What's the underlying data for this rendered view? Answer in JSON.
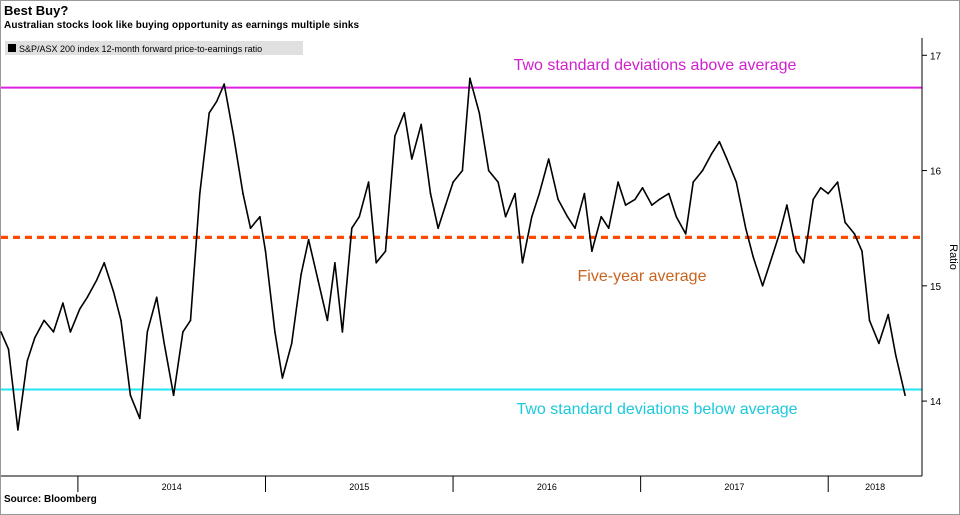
{
  "header": {
    "title": "Best Buy?",
    "subtitle": "Australian stocks look like buying opportunity as earnings multiple sinks"
  },
  "footer": {
    "source": "Source: Bloomberg"
  },
  "colors": {
    "series": "#000000",
    "upper_band": "#e020e0",
    "average": "#ff4a00",
    "average_label": "#c8641e",
    "lower_band": "#22e5f0",
    "upper_label": "#d020d0",
    "lower_label": "#1cc8dc"
  },
  "chart_data": {
    "type": "line",
    "series": [
      {
        "name": "S&P/ASX 200 index 12-month forward price-to-earnings ratio",
        "x": [
          2013.59,
          2013.63,
          2013.68,
          2013.73,
          2013.77,
          2013.82,
          2013.87,
          2013.92,
          2013.96,
          2014.01,
          2014.05,
          2014.1,
          2014.14,
          2014.19,
          2014.23,
          2014.28,
          2014.33,
          2014.37,
          2014.42,
          2014.46,
          2014.51,
          2014.56,
          2014.6,
          2014.65,
          2014.7,
          2014.74,
          2014.78,
          2014.83,
          2014.88,
          2014.92,
          2014.97,
          2015.0,
          2015.05,
          2015.09,
          2015.14,
          2015.19,
          2015.23,
          2015.28,
          2015.33,
          2015.37,
          2015.41,
          2015.46,
          2015.5,
          2015.55,
          2015.59,
          2015.64,
          2015.69,
          2015.74,
          2015.78,
          2015.83,
          2015.88,
          2015.92,
          2015.96,
          2016.0,
          2016.05,
          2016.09,
          2016.14,
          2016.19,
          2016.24,
          2016.28,
          2016.33,
          2016.37,
          2016.42,
          2016.46,
          2016.51,
          2016.56,
          2016.61,
          2016.65,
          2016.7,
          2016.74,
          2016.79,
          2016.83,
          2016.88,
          2016.92,
          2016.97,
          2017.01,
          2017.06,
          2017.1,
          2017.15,
          2017.19,
          2017.24,
          2017.28,
          2017.33,
          2017.38,
          2017.42,
          2017.46,
          2017.51,
          2017.56,
          2017.6,
          2017.65,
          2017.69,
          2017.74,
          2017.78,
          2017.83,
          2017.87,
          2017.92,
          2017.96,
          2018.0,
          2018.05,
          2018.09,
          2018.14,
          2018.18,
          2018.22,
          2018.27,
          2018.32,
          2018.36,
          2018.41
        ],
        "values": [
          14.6,
          14.45,
          13.75,
          14.35,
          14.55,
          14.7,
          14.6,
          14.85,
          14.6,
          14.8,
          14.9,
          15.05,
          15.2,
          14.95,
          14.7,
          14.05,
          13.85,
          14.6,
          14.9,
          14.5,
          14.05,
          14.6,
          14.7,
          15.8,
          16.5,
          16.6,
          16.75,
          16.3,
          15.8,
          15.5,
          15.6,
          15.3,
          14.6,
          14.2,
          14.5,
          15.1,
          15.4,
          15.05,
          14.7,
          15.2,
          14.6,
          15.5,
          15.6,
          15.9,
          15.2,
          15.3,
          16.3,
          16.5,
          16.1,
          16.4,
          15.8,
          15.5,
          15.7,
          15.9,
          16.0,
          16.8,
          16.5,
          16.0,
          15.9,
          15.6,
          15.8,
          15.2,
          15.6,
          15.8,
          16.1,
          15.75,
          15.6,
          15.5,
          15.8,
          15.3,
          15.6,
          15.5,
          15.9,
          15.7,
          15.75,
          15.85,
          15.7,
          15.75,
          15.8,
          15.6,
          15.45,
          15.9,
          16.0,
          16.15,
          16.25,
          16.1,
          15.9,
          15.5,
          15.25,
          15.0,
          15.2,
          15.45,
          15.7,
          15.3,
          15.2,
          15.75,
          15.85,
          15.8,
          15.9,
          15.55,
          15.45,
          15.3,
          14.7,
          14.5,
          14.75,
          14.4,
          14.05
        ]
      }
    ],
    "reference_lines": [
      {
        "value": 16.72,
        "label": "Two standard deviations above average"
      },
      {
        "value": 15.42,
        "label": "Five-year average"
      },
      {
        "value": 14.1,
        "label": "Two standard deviations below average"
      }
    ],
    "x_ticks": [
      "2014",
      "2015",
      "2016",
      "2017",
      "2018"
    ],
    "y_ticks": [
      "14",
      "15",
      "16",
      "17"
    ],
    "ylabel": "Ratio",
    "xlim": [
      2013.59,
      2018.5
    ],
    "ylim": [
      13.35,
      17.15
    ],
    "legend": "top-left",
    "grid": false
  }
}
